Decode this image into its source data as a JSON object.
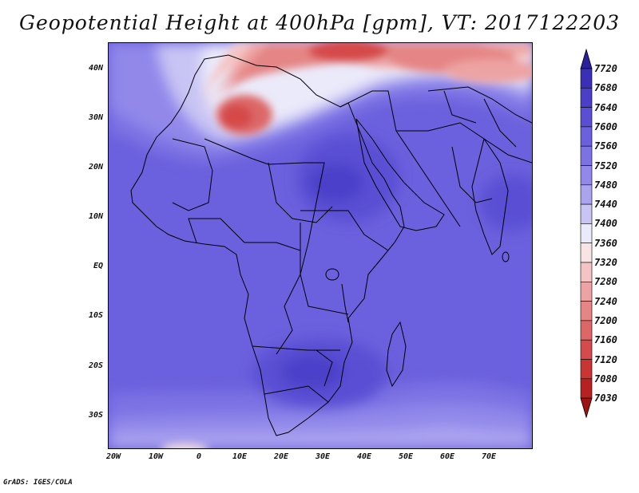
{
  "title": "Geopotential Height at 400hPa [gpm], VT: 2017122203",
  "credit": "GrADS: IGES/COLA",
  "map": {
    "region": "Africa",
    "lon_range": [
      -25,
      80
    ],
    "lat_range": [
      -37,
      45
    ],
    "lon_ticks": [
      {
        "lon": -20,
        "label": "20W"
      },
      {
        "lon": -10,
        "label": "10W"
      },
      {
        "lon": 0,
        "label": "0"
      },
      {
        "lon": 10,
        "label": "10E"
      },
      {
        "lon": 20,
        "label": "20E"
      },
      {
        "lon": 30,
        "label": "30E"
      },
      {
        "lon": 40,
        "label": "40E"
      },
      {
        "lon": 50,
        "label": "50E"
      },
      {
        "lon": 60,
        "label": "60E"
      },
      {
        "lon": 70,
        "label": "70E"
      }
    ],
    "lat_ticks": [
      {
        "lat": 40,
        "label": "40N"
      },
      {
        "lat": 30,
        "label": "30N"
      },
      {
        "lat": 20,
        "label": "20N"
      },
      {
        "lat": 10,
        "label": "10N"
      },
      {
        "lat": 0,
        "label": "EQ"
      },
      {
        "lat": -10,
        "label": "10S"
      },
      {
        "lat": -20,
        "label": "20S"
      },
      {
        "lat": -30,
        "label": "30S"
      }
    ]
  },
  "colorbar": {
    "labels": [
      "7720",
      "7680",
      "7640",
      "7600",
      "7560",
      "7520",
      "7480",
      "7440",
      "7400",
      "7360",
      "7320",
      "7280",
      "7240",
      "7200",
      "7160",
      "7120",
      "7080",
      "7030"
    ],
    "colors": [
      "#2a1f9c",
      "#3a30b8",
      "#4b3fc9",
      "#5a4fd4",
      "#6b60dd",
      "#7c72e4",
      "#9188ea",
      "#aaa3ef",
      "#c8c4f4",
      "#ebeafa",
      "#f8e4e4",
      "#f4c4c4",
      "#eda3a3",
      "#e58585",
      "#dd6767",
      "#d54a4a",
      "#c93434",
      "#b82121",
      "#a01313"
    ]
  }
}
